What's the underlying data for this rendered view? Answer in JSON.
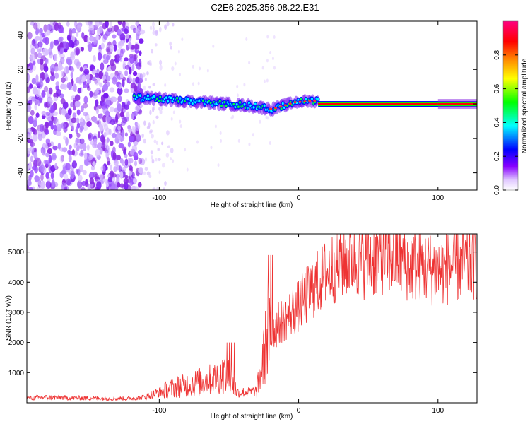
{
  "chart_data": [
    {
      "type": "heatmap",
      "title": "C2E6.2025.356.08.22.E31",
      "xlabel": "Height of straight line (km)",
      "ylabel": "Frequency (Hz)",
      "xlim": [
        -195,
        128
      ],
      "ylim": [
        -50,
        48
      ],
      "xticks": [
        -100,
        0,
        100
      ],
      "xtick_labels": [
        "-100",
        "0",
        "100"
      ],
      "yticks": [
        -40,
        -20,
        0,
        20,
        40
      ],
      "ytick_labels": [
        "-40",
        "-20",
        "0",
        "20",
        "40"
      ],
      "colorbar": {
        "label": "Normalized spectral amplitude",
        "range": [
          0,
          1
        ],
        "ticks": [
          0,
          0.2,
          0.4,
          0.6,
          0.8
        ],
        "tick_labels": [
          "0.0",
          "0.2",
          "0.4",
          "0.6",
          "0.8"
        ],
        "colors": [
          "#ffffff",
          "#e0c8ff",
          "#8800ff",
          "#0000ff",
          "#00ffff",
          "#00ff00",
          "#ffff00",
          "#ff8000",
          "#ff0000",
          "#ff0080"
        ]
      },
      "regions": [
        {
          "name": "noise",
          "x_range": [
            -195,
            -112
          ],
          "freq_range": [
            -50,
            48
          ],
          "amplitude": 0.05
        },
        {
          "name": "noise-fringe",
          "x_range": [
            -112,
            -90
          ],
          "freq_range": [
            -50,
            48
          ],
          "amplitude": 0.02
        },
        {
          "name": "head-track",
          "x_range": [
            -118,
            14
          ],
          "freq_center": [
            4,
            3,
            2,
            1,
            0,
            -1,
            -3,
            1,
            2
          ],
          "amplitude": 0.55
        },
        {
          "name": "carrier",
          "x_range": [
            14,
            128
          ],
          "freq_center": 0,
          "amplitude": 0.95
        }
      ]
    },
    {
      "type": "line",
      "xlabel": "Height of straight line (km)",
      "ylabel": "SNR (10 * v/v)",
      "xlim": [
        -195,
        128
      ],
      "ylim": [
        0,
        5600
      ],
      "xticks": [
        -100,
        0,
        100
      ],
      "xtick_labels": [
        "-100",
        "0",
        "100"
      ],
      "yticks": [
        1000,
        2000,
        3000,
        4000,
        5000
      ],
      "ytick_labels": [
        "1000",
        "2000",
        "3000",
        "4000",
        "5000"
      ],
      "series": [
        {
          "name": "SNR",
          "color": "#ee3333",
          "x": [
            -195,
            -180,
            -160,
            -140,
            -120,
            -110,
            -100,
            -90,
            -80,
            -70,
            -60,
            -52,
            -48,
            -44,
            -40,
            -35,
            -30,
            -25,
            -22,
            -20,
            -15,
            -10,
            -5,
            0,
            10,
            20,
            30,
            40,
            50,
            60,
            70,
            80,
            90,
            100,
            110,
            120,
            128
          ],
          "values": [
            150,
            180,
            160,
            150,
            140,
            200,
            350,
            500,
            600,
            700,
            800,
            1000,
            700,
            350,
            350,
            350,
            400,
            1500,
            2400,
            2200,
            2600,
            2800,
            3000,
            3200,
            3800,
            4300,
            4700,
            4800,
            4700,
            4900,
            4800,
            4600,
            4500,
            4400,
            4500,
            4600,
            4700
          ]
        }
      ]
    }
  ]
}
